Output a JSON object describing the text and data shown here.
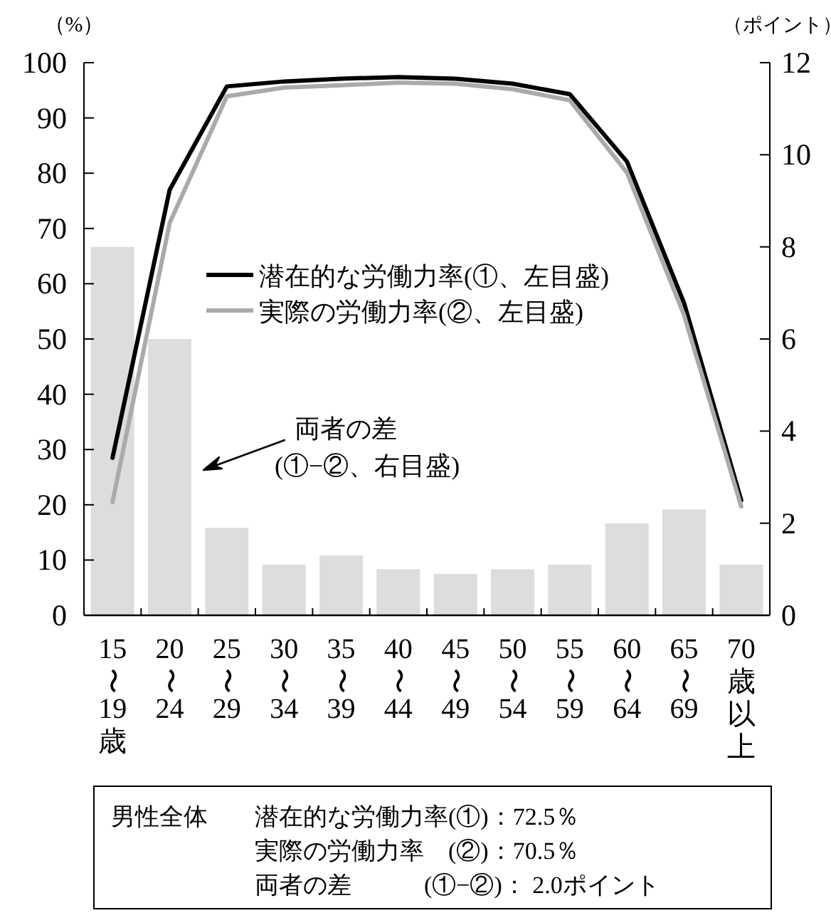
{
  "chart_data": {
    "type": "line",
    "ylabel": "（%）",
    "y2label": "（ポイント）",
    "categories": [
      "15〜19歳",
      "20〜24",
      "25〜29",
      "30〜34",
      "35〜39",
      "40〜44",
      "45〜49",
      "50〜54",
      "55〜59",
      "60〜64",
      "65〜69",
      "70歳以上"
    ],
    "series": [
      {
        "type": "bar",
        "axis": "y2",
        "color": "#dcdddd",
        "values": [
          8.0,
          6.0,
          1.9,
          1.1,
          1.3,
          1.0,
          0.9,
          1.0,
          1.1,
          2.0,
          2.3,
          1.1
        ]
      },
      {
        "name": "潜在的な労働力率(①、左目盛)",
        "axis": "y",
        "color": "#000000",
        "values": [
          28.5,
          77,
          95.7,
          96.6,
          97.1,
          97.4,
          97.1,
          96.2,
          94.3,
          82.1,
          56.5,
          20.8
        ]
      },
      {
        "name": "実際の労働力率(②、左目盛)",
        "axis": "y",
        "color": "#aaaaaa",
        "values": [
          20.5,
          71,
          93.9,
          95.5,
          95.9,
          96.4,
          96.2,
          95.2,
          93.2,
          80.1,
          54.3,
          19.7
        ]
      }
    ],
    "ylim": [
      0,
      100
    ],
    "yticks": [
      0,
      10,
      20,
      30,
      40,
      50,
      60,
      70,
      80,
      90,
      100
    ],
    "y2lim": [
      0,
      12
    ],
    "y2ticks": [
      0,
      2,
      4,
      6,
      8,
      10,
      12
    ],
    "grid": false,
    "legend": "top",
    "marker": "none",
    "line_style": "solid",
    "annotations": [
      "両者の差\n(①−②、右目盛)",
      "男性全体",
      "潜在的な労働力率(①)：72.5％",
      "実際の労働力率　(②)：70.5％",
      "両者の差　　　(①−②)： 2.0ポイント"
    ]
  }
}
